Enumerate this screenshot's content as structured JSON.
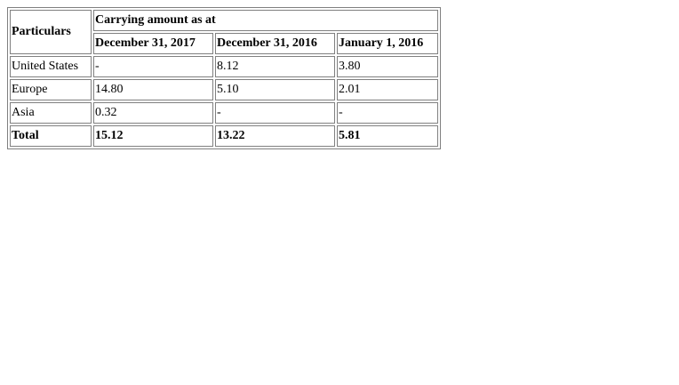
{
  "table": {
    "header": {
      "particulars": "Particulars",
      "group": "Carrying amount as at",
      "columns": [
        "December 31, 2017",
        "December 31, 2016",
        "January 1, 2016"
      ]
    },
    "rows": [
      {
        "label": "United States",
        "values": [
          "-",
          "8.12",
          "3.80"
        ]
      },
      {
        "label": "Europe",
        "values": [
          "14.80",
          "5.10",
          "2.01"
        ]
      },
      {
        "label": "Asia",
        "values": [
          "0.32",
          "-",
          "-"
        ]
      }
    ],
    "total": {
      "label": "Total",
      "values": [
        "15.12",
        "13.22",
        "5.81"
      ]
    }
  }
}
